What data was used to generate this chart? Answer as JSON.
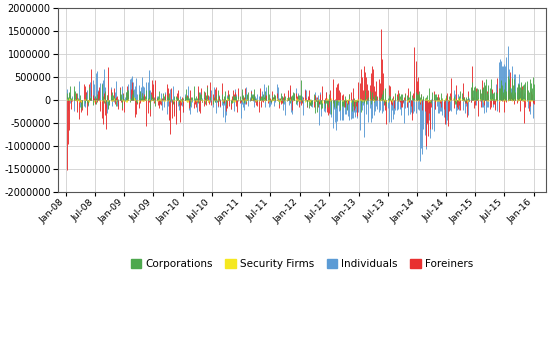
{
  "title": "",
  "ylim": [
    -2000000,
    2000000
  ],
  "yticks": [
    -2000000,
    -1500000,
    -1000000,
    -500000,
    0,
    500000,
    1000000,
    1500000,
    2000000
  ],
  "xtick_labels": [
    "Jan-08",
    "Jul-08",
    "Jan-09",
    "Jul-09",
    "Jan-10",
    "Jul-10",
    "Jan-11",
    "Jul-11",
    "Jan-12",
    "Jul-12",
    "Jan-13",
    "Jul-13",
    "Jan-14",
    "Jul-14",
    "Jan-15",
    "Jul-15",
    "Jan-16"
  ],
  "legend_labels": [
    "Corporations",
    "Security Firms",
    "Individuals",
    "Foreiners"
  ],
  "colors": {
    "corporations": "#4ea84e",
    "security_firms": "#f5e820",
    "individuals": "#5b9bd5",
    "foreigners": "#e83030"
  },
  "background_color": "#ffffff",
  "plot_bg_color": "#ffffff",
  "grid_color": "#d0d0d0",
  "n_weeks": 418,
  "seed": 42
}
